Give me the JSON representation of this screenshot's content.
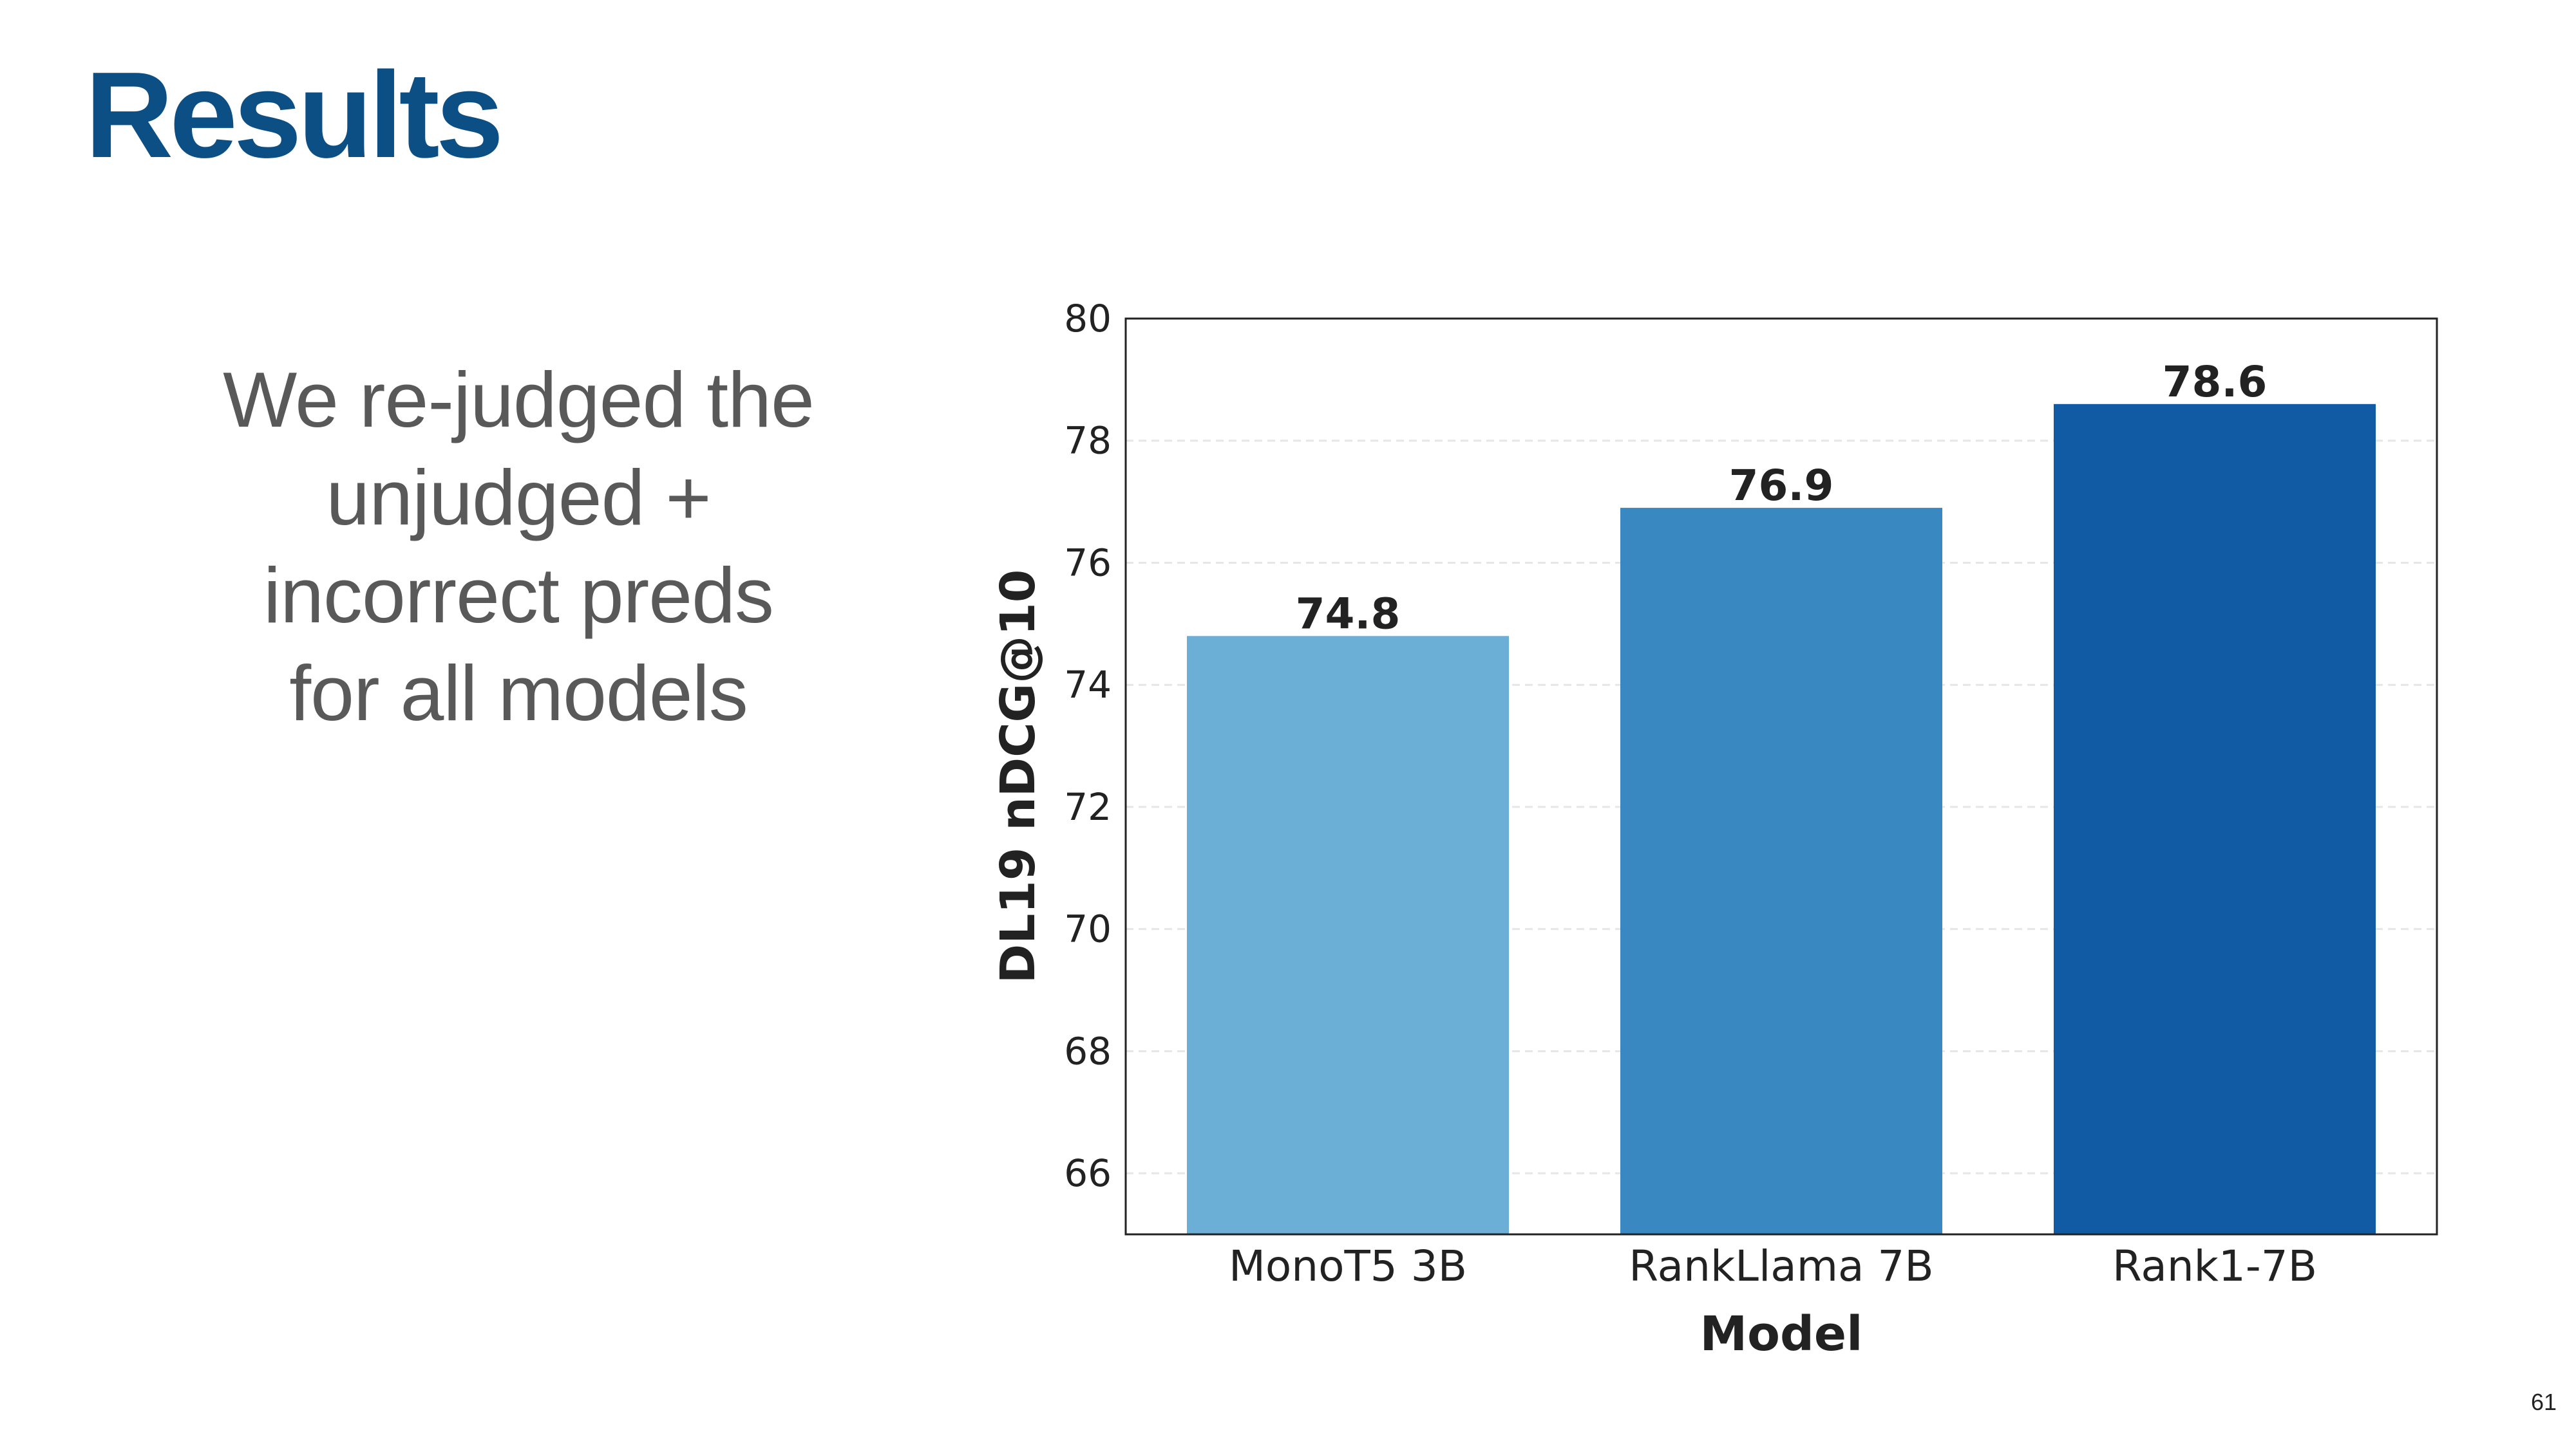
{
  "slide": {
    "title": "Results",
    "body_lines": [
      "We re-judged the",
      "unjudged +",
      "incorrect preds",
      "for all models"
    ],
    "page_number": "61",
    "title_color": "#0b4f85",
    "text_color": "#595959"
  },
  "chart_data": {
    "type": "bar",
    "categories": [
      "MonoT5 3B",
      "RankLlama 7B",
      "Rank1-7B"
    ],
    "values": [
      74.8,
      76.9,
      78.6
    ],
    "value_labels": [
      "74.8",
      "76.9",
      "78.6"
    ],
    "colors": [
      "#6baed6",
      "#3a88c2",
      "#115ba5"
    ],
    "title": "",
    "xlabel": "Model",
    "ylabel": "DL19 nDCG@10",
    "ylim": [
      65,
      80
    ],
    "yticks": [
      66,
      68,
      70,
      72,
      74,
      76,
      78,
      80
    ],
    "ytick_labels": [
      "66",
      "68",
      "70",
      "72",
      "74",
      "76",
      "78",
      "80"
    ],
    "grid": "horizontal, faint dashed",
    "legend": "none"
  }
}
